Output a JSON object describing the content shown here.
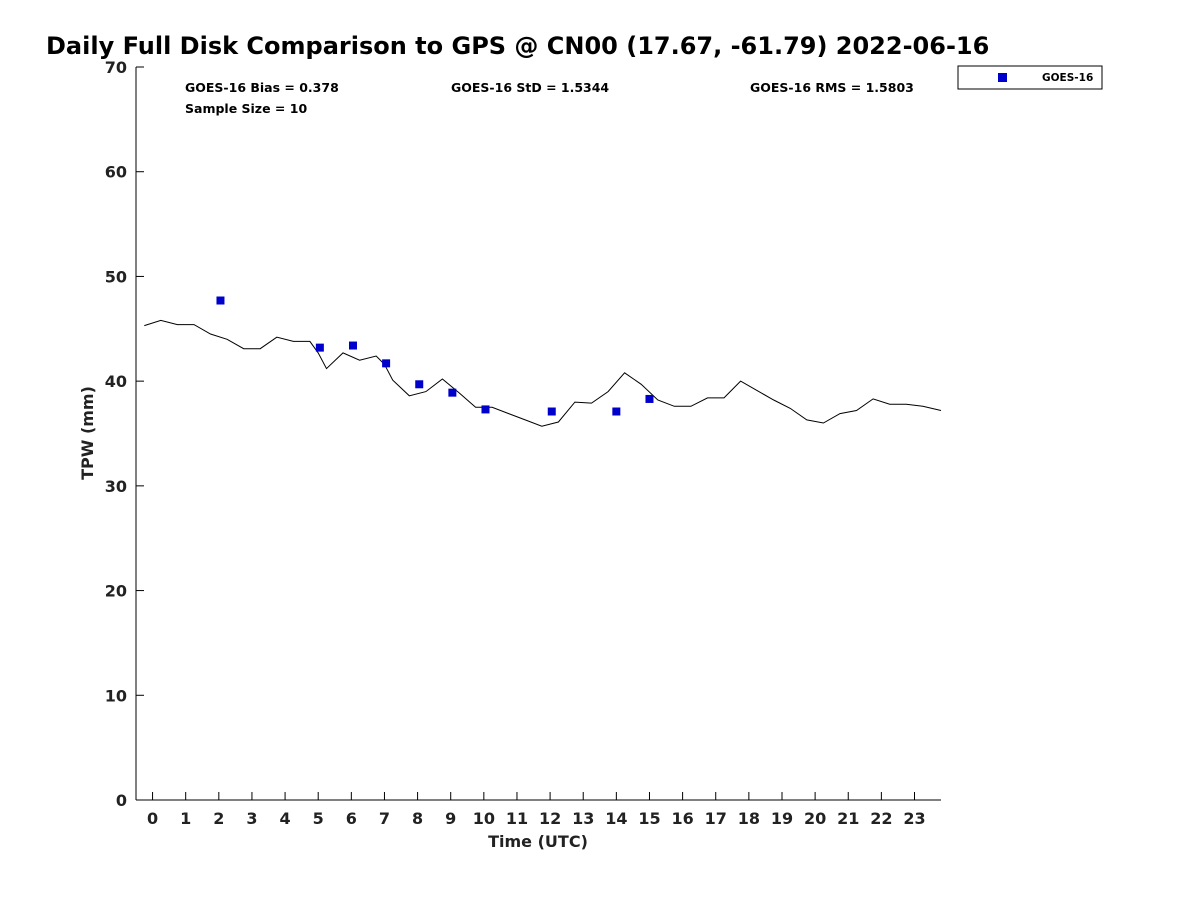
{
  "chart_data": {
    "type": "scatter",
    "title": "Daily Full Disk Comparison to GPS @ CN00 (17.67, -61.79) 2022-06-16",
    "xlabel": "Time (UTC)",
    "ylabel": "TPW (mm)",
    "xlim": [
      -0.5,
      23.8
    ],
    "ylim": [
      0,
      70
    ],
    "xticks": [
      0,
      1,
      2,
      3,
      4,
      5,
      6,
      7,
      8,
      9,
      10,
      11,
      12,
      13,
      14,
      15,
      16,
      17,
      18,
      19,
      20,
      21,
      22,
      23
    ],
    "yticks": [
      0,
      10,
      20,
      30,
      40,
      50,
      60,
      70
    ],
    "grid": false,
    "legend": {
      "placement": "top-right-outside",
      "entries": [
        "GOES-16"
      ]
    },
    "annotations": {
      "bias": "GOES-16 Bias = 0.378",
      "std": "GOES-16 StD = 1.5344",
      "rms": "GOES-16 RMS = 1.5803",
      "sample_size": "Sample Size = 10"
    },
    "series": [
      {
        "name": "GPS",
        "kind": "line",
        "color": "#000000",
        "x": [
          -0.25,
          0.25,
          0.75,
          1.25,
          1.75,
          2.25,
          2.75,
          3.25,
          3.75,
          4.25,
          4.75,
          5.0,
          5.25,
          5.75,
          6.25,
          6.75,
          7.0,
          7.25,
          7.75,
          8.25,
          8.75,
          9.25,
          9.75,
          10.25,
          10.75,
          11.25,
          11.75,
          12.25,
          12.75,
          13.25,
          13.75,
          14.25,
          14.75,
          15.25,
          15.75,
          16.25,
          16.75,
          17.25,
          17.75,
          18.25,
          18.75,
          19.25,
          19.75,
          20.25,
          20.75,
          21.25,
          21.75,
          22.25,
          22.75,
          23.25,
          23.8
        ],
        "y": [
          45.3,
          45.8,
          45.4,
          45.4,
          44.5,
          44.0,
          43.1,
          43.1,
          44.2,
          43.8,
          43.8,
          42.7,
          41.2,
          42.7,
          42.0,
          42.4,
          41.6,
          40.1,
          38.6,
          39.0,
          40.2,
          38.9,
          37.5,
          37.5,
          36.9,
          36.3,
          35.7,
          36.1,
          38.0,
          37.9,
          39.0,
          40.8,
          39.7,
          38.2,
          37.6,
          37.6,
          38.4,
          38.4,
          40.0,
          39.1,
          38.2,
          37.4,
          36.3,
          36.0,
          36.9,
          37.2,
          38.3,
          37.8,
          37.8,
          37.6,
          37.2
        ]
      },
      {
        "name": "GOES-16",
        "kind": "scatter",
        "color": "#0000cc",
        "x": [
          2.05,
          5.05,
          6.05,
          7.05,
          8.05,
          9.05,
          10.05,
          12.05,
          14.0,
          15.0
        ],
        "y": [
          47.7,
          43.2,
          43.4,
          41.7,
          39.7,
          38.9,
          37.3,
          37.1,
          37.1,
          38.3
        ]
      }
    ]
  }
}
